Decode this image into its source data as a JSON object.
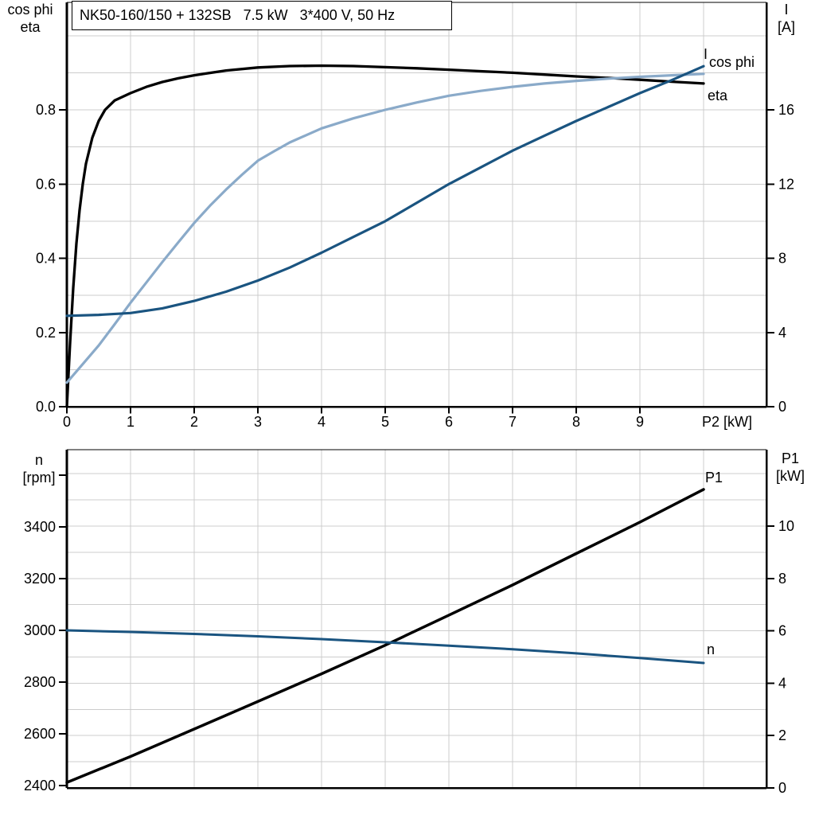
{
  "title": "NK50-160/150 + 132SB   7.5 kW   3*400 V, 50 Hz",
  "colors": {
    "black": "#000000",
    "dark_blue": "#1a5480",
    "light_blue": "#8aaac9",
    "grid": "#cccccc",
    "frame": "#000000",
    "background": "#ffffff"
  },
  "chart_data": [
    {
      "type": "line",
      "panel": "top",
      "x_axis": {
        "label": "P2 [kW]",
        "range": [
          0,
          11
        ],
        "grid_step": 1,
        "tick_values": [
          0,
          1,
          2,
          3,
          4,
          5,
          6,
          7,
          8,
          9
        ],
        "tick_labels": [
          "0",
          "1",
          "2",
          "3",
          "4",
          "5",
          "6",
          "7",
          "8",
          "9"
        ]
      },
      "y_left": {
        "header": [
          "cos phi",
          "eta"
        ],
        "range": [
          0,
          1.09
        ],
        "grid_step": 0.1,
        "tick_values": [
          0,
          0.2,
          0.4,
          0.6,
          0.8
        ],
        "tick_labels": [
          "0.0",
          "0.2",
          "0.4",
          "0.6",
          "0.8"
        ]
      },
      "y_right": {
        "header": [
          "I",
          "[A]"
        ],
        "range": [
          0,
          21.8
        ],
        "grid_step": 2,
        "tick_values": [
          0,
          4,
          8,
          12,
          16
        ],
        "tick_labels": [
          "0",
          "4",
          "8",
          "12",
          "16"
        ]
      },
      "series": [
        {
          "name": "eta",
          "label": "eta",
          "axis": "left",
          "color_key": "black",
          "x": [
            0,
            0.05,
            0.1,
            0.15,
            0.2,
            0.25,
            0.3,
            0.4,
            0.5,
            0.6,
            0.75,
            1,
            1.25,
            1.5,
            1.75,
            2,
            2.5,
            3,
            3.5,
            4,
            4.5,
            5,
            5.5,
            6,
            6.5,
            7,
            7.5,
            8,
            8.5,
            9,
            9.5,
            10
          ],
          "y": [
            0,
            0.17,
            0.32,
            0.44,
            0.53,
            0.6,
            0.655,
            0.725,
            0.77,
            0.8,
            0.825,
            0.845,
            0.862,
            0.875,
            0.885,
            0.893,
            0.906,
            0.914,
            0.918,
            0.919,
            0.918,
            0.915,
            0.912,
            0.908,
            0.904,
            0.9,
            0.895,
            0.89,
            0.886,
            0.881,
            0.876,
            0.871
          ]
        },
        {
          "name": "cos phi",
          "label": "cos phi",
          "axis": "left",
          "color_key": "light_blue",
          "x": [
            0,
            0.25,
            0.5,
            0.75,
            1,
            1.25,
            1.5,
            1.75,
            2,
            2.25,
            2.5,
            2.75,
            3,
            3.25,
            3.5,
            4,
            4.5,
            5,
            5.5,
            6,
            6.5,
            7,
            7.5,
            8,
            8.5,
            9,
            9.5,
            10
          ],
          "y": [
            0.065,
            0.115,
            0.165,
            0.222,
            0.28,
            0.335,
            0.39,
            0.443,
            0.495,
            0.542,
            0.585,
            0.625,
            0.663,
            0.688,
            0.712,
            0.75,
            0.777,
            0.8,
            0.82,
            0.838,
            0.851,
            0.862,
            0.871,
            0.878,
            0.884,
            0.889,
            0.893,
            0.897
          ]
        },
        {
          "name": "I",
          "label": "I",
          "axis": "right",
          "color_key": "dark_blue",
          "x": [
            0,
            0.5,
            1,
            1.5,
            2,
            2.5,
            3,
            3.5,
            4,
            4.5,
            5,
            5.5,
            6,
            6.5,
            7,
            7.5,
            8,
            8.5,
            9,
            9.5,
            10
          ],
          "y": [
            4.9,
            4.95,
            5.05,
            5.3,
            5.7,
            6.2,
            6.8,
            7.5,
            8.3,
            9.15,
            10,
            11,
            12,
            12.9,
            13.8,
            14.6,
            15.4,
            16.15,
            16.9,
            17.6,
            18.35
          ]
        }
      ]
    },
    {
      "type": "line",
      "panel": "bottom",
      "x_axis": {
        "label": "",
        "range": [
          0,
          11
        ],
        "grid_step": 1,
        "tick_values": [],
        "tick_labels": []
      },
      "y_left": {
        "header": [
          "n",
          "[rpm]"
        ],
        "range": [
          2390,
          3700
        ],
        "grid_step": 200,
        "tick_values": [
          2400,
          2600,
          2800,
          3000,
          3200,
          3400,
          3600
        ],
        "tick_labels": [
          "2400",
          "2600",
          "2800",
          "3000",
          "3200",
          "3400",
          ""
        ]
      },
      "y_right": {
        "header": [
          "P1",
          "[kW]"
        ],
        "range": [
          0,
          12.9
        ],
        "grid_step": 1,
        "tick_values": [
          0,
          2,
          4,
          6,
          8,
          10
        ],
        "tick_labels": [
          "0",
          "2",
          "4",
          "6",
          "8",
          "10"
        ]
      },
      "series": [
        {
          "name": "P1",
          "label": "P1",
          "axis": "right",
          "color_key": "black",
          "x": [
            0,
            1,
            2,
            3,
            4,
            5,
            6,
            7,
            8,
            9,
            10
          ],
          "y": [
            0.21,
            1.2,
            2.25,
            3.3,
            4.36,
            5.45,
            6.6,
            7.75,
            8.95,
            10.15,
            11.4
          ]
        },
        {
          "name": "n",
          "label": "n",
          "axis": "left",
          "color_key": "dark_blue",
          "x": [
            0,
            1,
            2,
            3,
            4,
            5,
            6,
            7,
            8,
            9,
            10
          ],
          "y": [
            3000,
            2994,
            2986,
            2977,
            2966,
            2954,
            2941,
            2927,
            2911,
            2893,
            2874
          ]
        }
      ]
    }
  ]
}
